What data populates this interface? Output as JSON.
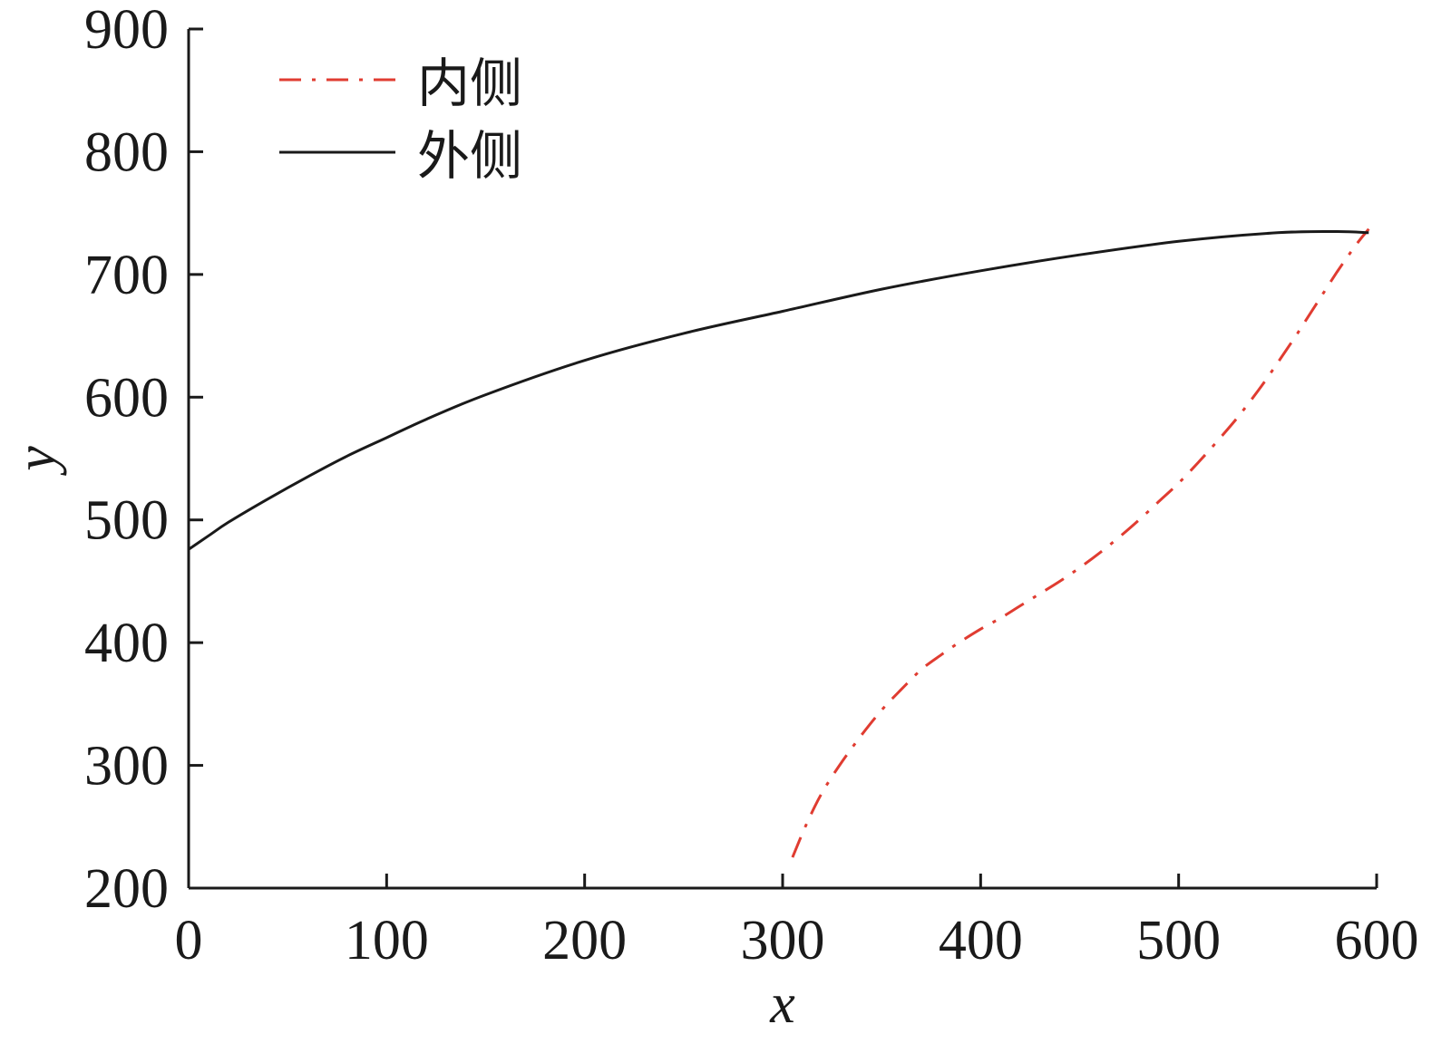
{
  "chart_data": {
    "type": "line",
    "title": "",
    "xlabel": "x",
    "ylabel": "y",
    "xlim": [
      0,
      600
    ],
    "ylim": [
      200,
      900
    ],
    "xticks": [
      "0",
      "100",
      "200",
      "300",
      "400",
      "500",
      "600"
    ],
    "yticks": [
      "200",
      "300",
      "400",
      "500",
      "600",
      "700",
      "800",
      "900"
    ],
    "grid": false,
    "legend": {
      "placement": "top-left",
      "entries": [
        "内侧",
        "外侧"
      ]
    },
    "series": [
      {
        "name": "内侧",
        "color": "#e03c31",
        "line_style": "dash-dot",
        "x": [
          305,
          312,
          320,
          330,
          340,
          350,
          360,
          370,
          380,
          390,
          400,
          410,
          420,
          430,
          440,
          450,
          460,
          470,
          480,
          490,
          500,
          510,
          520,
          530,
          540,
          550,
          560,
          570,
          580,
          590,
          596
        ],
        "y": [
          225,
          252,
          278,
          303,
          325,
          345,
          362,
          378,
          390,
          401,
          411,
          420,
          430,
          440,
          450,
          461,
          473,
          486,
          500,
          515,
          530,
          547,
          565,
          584,
          605,
          628,
          652,
          677,
          702,
          725,
          737
        ]
      },
      {
        "name": "外侧",
        "color": "#1a1a1a",
        "line_style": "solid",
        "x": [
          0,
          10,
          20,
          40,
          60,
          80,
          100,
          120,
          150,
          200,
          250,
          300,
          350,
          400,
          450,
          500,
          550,
          580,
          596
        ],
        "y": [
          476,
          487,
          498,
          517,
          535,
          552,
          567,
          582,
          602,
          630,
          652,
          670,
          688,
          703,
          716,
          727,
          734,
          735,
          734
        ]
      }
    ]
  }
}
